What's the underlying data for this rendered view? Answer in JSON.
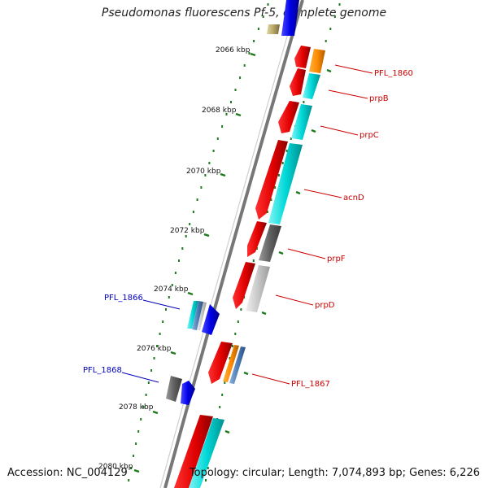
{
  "title": "Pseudomonas fluorescens Pf-5, complete genome",
  "footer": {
    "accession": "Accession: NC_004129",
    "topology": "Topology: circular; Length: 7,074,893 bp; Genes: 6,226"
  },
  "colors": {
    "backbone": "#8a8a8a",
    "tick": "#1f7a1f",
    "right_label": "#cc0000",
    "left_label": "#0000bb"
  },
  "tick_labels": [
    "2066 kbp",
    "2068 kbp",
    "2070 kbp",
    "2072 kbp",
    "2074 kbp",
    "2076 kbp",
    "2078 kbp",
    "2080 kbp"
  ],
  "gene_labels_right": [
    "PFL_1860",
    "prpB",
    "prpC",
    "acnD",
    "prpF",
    "prpD",
    "PFL_1867"
  ],
  "gene_labels_left": [
    "PFL_1866",
    "PFL_1868"
  ]
}
